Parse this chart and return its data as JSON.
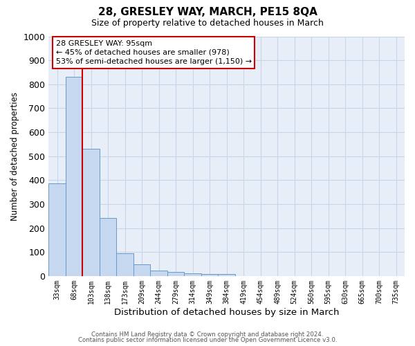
{
  "title": "28, GRESLEY WAY, MARCH, PE15 8QA",
  "subtitle": "Size of property relative to detached houses in March",
  "xlabel": "Distribution of detached houses by size in March",
  "ylabel": "Number of detached properties",
  "footnote1": "Contains HM Land Registry data © Crown copyright and database right 2024.",
  "footnote2": "Contains public sector information licensed under the Open Government Licence v3.0.",
  "bin_labels": [
    "33sqm",
    "68sqm",
    "103sqm",
    "138sqm",
    "173sqm",
    "209sqm",
    "244sqm",
    "279sqm",
    "314sqm",
    "349sqm",
    "384sqm",
    "419sqm",
    "454sqm",
    "489sqm",
    "524sqm",
    "560sqm",
    "595sqm",
    "630sqm",
    "665sqm",
    "700sqm",
    "735sqm"
  ],
  "bar_values": [
    385,
    830,
    530,
    242,
    95,
    50,
    22,
    16,
    10,
    8,
    8,
    0,
    0,
    0,
    0,
    0,
    0,
    0,
    0,
    0,
    0
  ],
  "bar_color": "#c5d8ef",
  "bar_edge_color": "#6699cc",
  "property_line_x": 1.5,
  "property_line_color": "#cc0000",
  "ylim": [
    0,
    1000
  ],
  "annotation_text": "28 GRESLEY WAY: 95sqm\n← 45% of detached houses are smaller (978)\n53% of semi-detached houses are larger (1,150) →",
  "annotation_box_color": "#ffffff",
  "annotation_box_edge_color": "#cc0000",
  "grid_color": "#c8d4e8",
  "background_color": "#e8eef8",
  "yticks": [
    0,
    100,
    200,
    300,
    400,
    500,
    600,
    700,
    800,
    900,
    1000
  ]
}
